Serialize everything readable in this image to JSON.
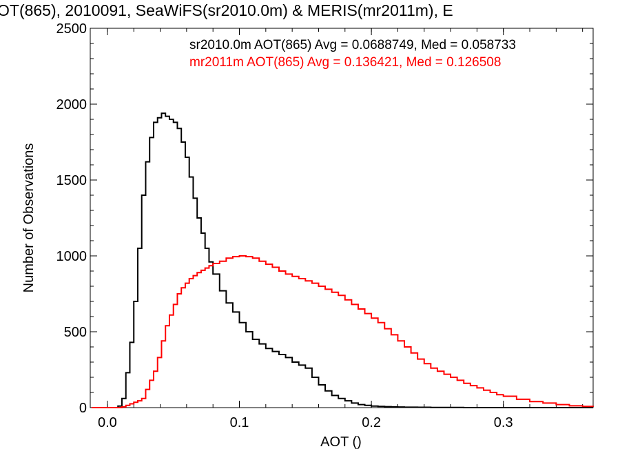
{
  "chart_data": {
    "type": "line",
    "title": "OT(865), 2010091, SeaWiFS(sr2010.0m) & MERIS(mr2011m), E",
    "xlabel": "AOT ()",
    "ylabel": "Number of Observations",
    "xlim": [
      -0.013,
      0.368
    ],
    "ylim": [
      0,
      2500
    ],
    "xticks": [
      0.0,
      0.1,
      0.2,
      0.3
    ],
    "xtick_labels": [
      "0.0",
      "0.1",
      "0.2",
      "0.3"
    ],
    "yticks": [
      0,
      500,
      1000,
      1500,
      2000,
      2500
    ],
    "ytick_labels": [
      "0",
      "500",
      "1000",
      "1500",
      "2000",
      "2500"
    ],
    "grid": false,
    "legend_placement": "top",
    "line_style": "step",
    "x": [
      -0.012,
      0.0,
      0.005,
      0.008,
      0.011,
      0.014,
      0.017,
      0.02,
      0.023,
      0.026,
      0.029,
      0.032,
      0.035,
      0.038,
      0.041,
      0.044,
      0.047,
      0.05,
      0.053,
      0.056,
      0.059,
      0.062,
      0.065,
      0.068,
      0.071,
      0.074,
      0.077,
      0.08,
      0.085,
      0.09,
      0.095,
      0.1,
      0.105,
      0.11,
      0.115,
      0.12,
      0.125,
      0.13,
      0.135,
      0.14,
      0.145,
      0.15,
      0.155,
      0.16,
      0.165,
      0.17,
      0.175,
      0.18,
      0.185,
      0.19,
      0.195,
      0.2,
      0.205,
      0.21,
      0.215,
      0.22,
      0.225,
      0.23,
      0.235,
      0.24,
      0.245,
      0.25,
      0.255,
      0.26,
      0.265,
      0.27,
      0.275,
      0.28,
      0.285,
      0.29,
      0.295,
      0.3,
      0.31,
      0.32,
      0.33,
      0.34,
      0.35,
      0.36,
      0.368
    ],
    "series": [
      {
        "name": "",
        "color": "#000000",
        "values": [
          0,
          0,
          0,
          10,
          60,
          230,
          430,
          700,
          1050,
          1400,
          1620,
          1780,
          1880,
          1910,
          1940,
          1920,
          1900,
          1880,
          1840,
          1750,
          1650,
          1520,
          1380,
          1250,
          1150,
          1050,
          960,
          880,
          770,
          690,
          630,
          560,
          500,
          450,
          420,
          390,
          370,
          350,
          330,
          300,
          280,
          260,
          200,
          150,
          110,
          80,
          60,
          45,
          30,
          20,
          15,
          10,
          8,
          6,
          5,
          4,
          3,
          3,
          2,
          2,
          1,
          1,
          1,
          1,
          1,
          0,
          0,
          0,
          0,
          0,
          0,
          0,
          0,
          0,
          0,
          0,
          0,
          0,
          0
        ]
      },
      {
        "name": "",
        "color": "#ff0000",
        "values": [
          0,
          0,
          0,
          0,
          5,
          15,
          25,
          35,
          45,
          60,
          120,
          180,
          240,
          330,
          440,
          540,
          610,
          680,
          750,
          790,
          820,
          850,
          870,
          890,
          905,
          920,
          935,
          950,
          965,
          985,
          995,
          1000,
          995,
          985,
          965,
          945,
          925,
          900,
          880,
          865,
          850,
          835,
          820,
          800,
          780,
          760,
          740,
          710,
          680,
          650,
          620,
          590,
          560,
          520,
          480,
          440,
          400,
          360,
          320,
          290,
          260,
          240,
          220,
          200,
          180,
          160,
          145,
          130,
          115,
          100,
          85,
          75,
          55,
          40,
          30,
          20,
          12,
          8,
          5
        ]
      }
    ],
    "annotations": [
      {
        "text": "sr2010.0m AOT(865) Avg = 0.0688749, Med = 0.058733",
        "color": "#000000"
      },
      {
        "text": "mr2011m AOT(865) Avg = 0.136421, Med = 0.126508",
        "color": "#ff0000"
      }
    ]
  }
}
